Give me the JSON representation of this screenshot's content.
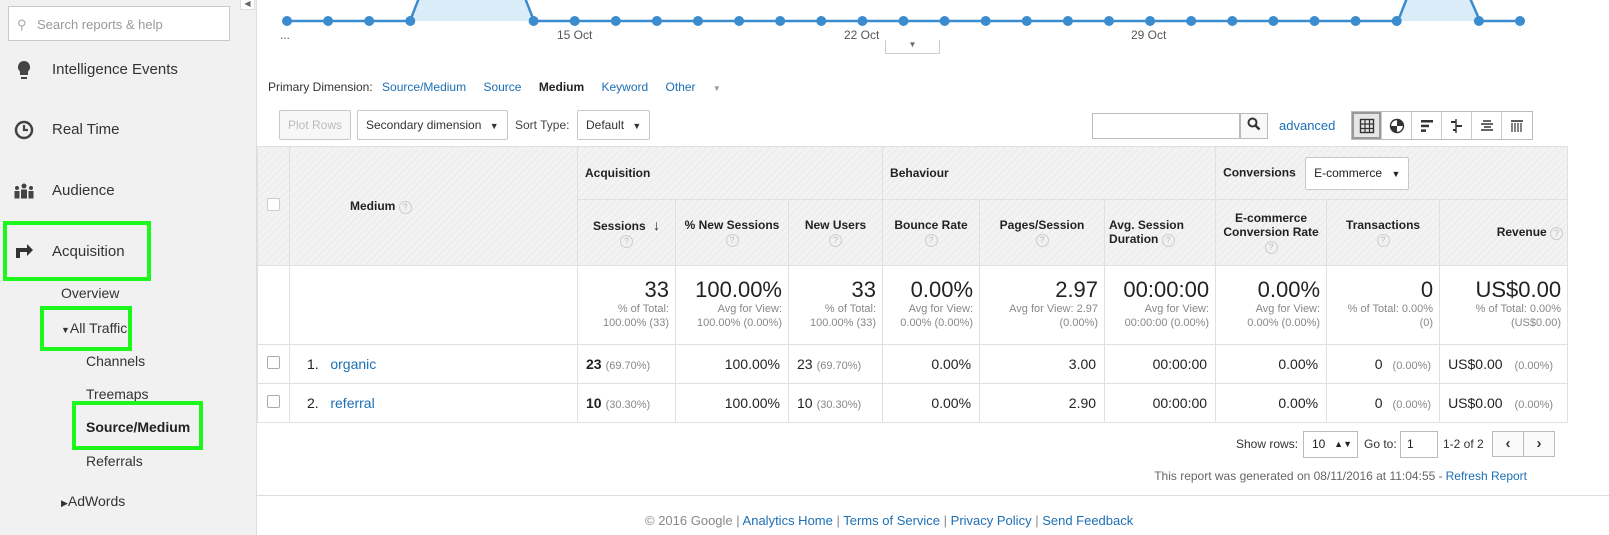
{
  "sidebar": {
    "search_placeholder": "Search reports & help",
    "items": {
      "intelligence": "Intelligence Events",
      "realtime": "Real Time",
      "audience": "Audience",
      "acquisition": "Acquisition"
    },
    "acquisition_sub": {
      "overview": "Overview",
      "all_traffic": "All Traffic",
      "channels": "Channels",
      "treemaps": "Treemaps",
      "source_medium": "Source/Medium",
      "referrals": "Referrals",
      "adwords": "AdWords"
    },
    "highlight_color": "#1cf71c"
  },
  "timeline": {
    "leading_label": "...",
    "dates": [
      "15 Oct",
      "22 Oct",
      "29 Oct"
    ],
    "line_color": "#3a8ccf"
  },
  "primary_dimension": {
    "label": "Primary Dimension:",
    "options": [
      "Source/Medium",
      "Source",
      "Medium",
      "Keyword"
    ],
    "selected": "Medium",
    "other": "Other"
  },
  "toolbar": {
    "plot_rows": "Plot Rows",
    "secondary_dimension": "Secondary dimension",
    "sort_type_label": "Sort Type:",
    "sort_type_value": "Default",
    "advanced": "advanced",
    "view_icons": [
      "table-view-icon",
      "pie-view-icon",
      "performance-view-icon",
      "comparison-view-icon",
      "term-cloud-view-icon",
      "pivot-view-icon"
    ]
  },
  "table": {
    "dimension_header": "Medium",
    "groups": {
      "acquisition": "Acquisition",
      "behaviour": "Behaviour",
      "conversions": "Conversions",
      "conversions_select": "E-commerce"
    },
    "columns": {
      "sessions": "Sessions",
      "new_sessions": "% New Sessions",
      "new_users": "New Users",
      "bounce_rate": "Bounce Rate",
      "pages_session": "Pages/Session",
      "avg_duration": "Avg. Session Duration",
      "ecom_rate": "E-commerce Conversion Rate",
      "transactions": "Transactions",
      "revenue": "Revenue"
    },
    "totals": {
      "sessions": {
        "v": "33",
        "s1": "% of Total:",
        "s2": "100.00% (33)"
      },
      "new_sessions": {
        "v": "100.00%",
        "s1": "Avg for View:",
        "s2": "100.00% (0.00%)"
      },
      "new_users": {
        "v": "33",
        "s1": "% of Total:",
        "s2": "100.00% (33)"
      },
      "bounce_rate": {
        "v": "0.00%",
        "s1": "Avg for View:",
        "s2": "0.00% (0.00%)"
      },
      "pages_session": {
        "v": "2.97",
        "s1": "Avg for View: 2.97",
        "s2": "(0.00%)"
      },
      "avg_duration": {
        "v": "00:00:00",
        "s1": "Avg for View:",
        "s2": "00:00:00 (0.00%)"
      },
      "ecom_rate": {
        "v": "0.00%",
        "s1": "Avg for View:",
        "s2": "0.00% (0.00%)"
      },
      "transactions": {
        "v": "0",
        "s1": "% of Total: 0.00%",
        "s2": "(0)"
      },
      "revenue": {
        "v": "US$0.00",
        "s1": "% of Total: 0.00%",
        "s2": "(US$0.00)"
      }
    },
    "rows": [
      {
        "idx": "1.",
        "medium": "organic",
        "sessions": "23",
        "sessions_pct": "(69.70%)",
        "new_sessions": "100.00%",
        "new_users": "23",
        "new_users_pct": "(69.70%)",
        "bounce_rate": "0.00%",
        "pages_session": "3.00",
        "avg_duration": "00:00:00",
        "ecom_rate": "0.00%",
        "transactions": "0",
        "transactions_pct": "(0.00%)",
        "revenue": "US$0.00",
        "revenue_pct": "(0.00%)"
      },
      {
        "idx": "2.",
        "medium": "referral",
        "sessions": "10",
        "sessions_pct": "(30.30%)",
        "new_sessions": "100.00%",
        "new_users": "10",
        "new_users_pct": "(30.30%)",
        "bounce_rate": "0.00%",
        "pages_session": "2.90",
        "avg_duration": "00:00:00",
        "ecom_rate": "0.00%",
        "transactions": "0",
        "transactions_pct": "(0.00%)",
        "revenue": "US$0.00",
        "revenue_pct": "(0.00%)"
      }
    ]
  },
  "pagination": {
    "show_rows_label": "Show rows:",
    "show_rows_value": "10",
    "goto_label": "Go to:",
    "goto_value": "1",
    "page_count": "1-2 of 2"
  },
  "generated": {
    "text": "This report was generated on 08/11/2016 at 11:04:55 -",
    "refresh": "Refresh Report"
  },
  "footer": {
    "copyright": "© 2016 Google",
    "links": [
      "Analytics Home",
      "Terms of Service",
      "Privacy Policy",
      "Send Feedback"
    ]
  }
}
